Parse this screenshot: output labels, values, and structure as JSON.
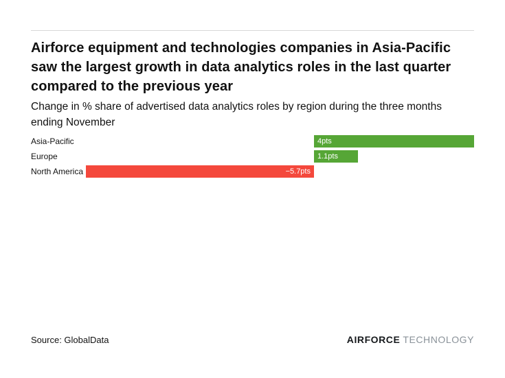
{
  "page": {
    "title": "Airforce equipment and technologies companies in Asia-Pacific saw the largest growth in data analytics roles in the last quarter compared to the previous year",
    "subtitle": "Change in % share of advertised data analytics roles by region during the three months ending November"
  },
  "chart_data": {
    "type": "bar",
    "orientation": "horizontal",
    "title": "Change in % share of advertised data analytics roles by region during the three months ending November",
    "xlabel": "",
    "ylabel": "",
    "categories": [
      "Asia-Pacific",
      "Europe",
      "North America"
    ],
    "values": [
      4,
      1.1,
      -5.7
    ],
    "value_labels": [
      "4pts",
      "1.1pts",
      "−5.7pts"
    ],
    "xlim": [
      -5.7,
      4
    ],
    "grid": false,
    "legend": false,
    "colors": {
      "positive": "#56a636",
      "negative": "#f4483c"
    }
  },
  "footer": {
    "source": "Source: GlobalData",
    "brand_bold": "AIRFORCE",
    "brand_light": "TECHNOLOGY"
  }
}
